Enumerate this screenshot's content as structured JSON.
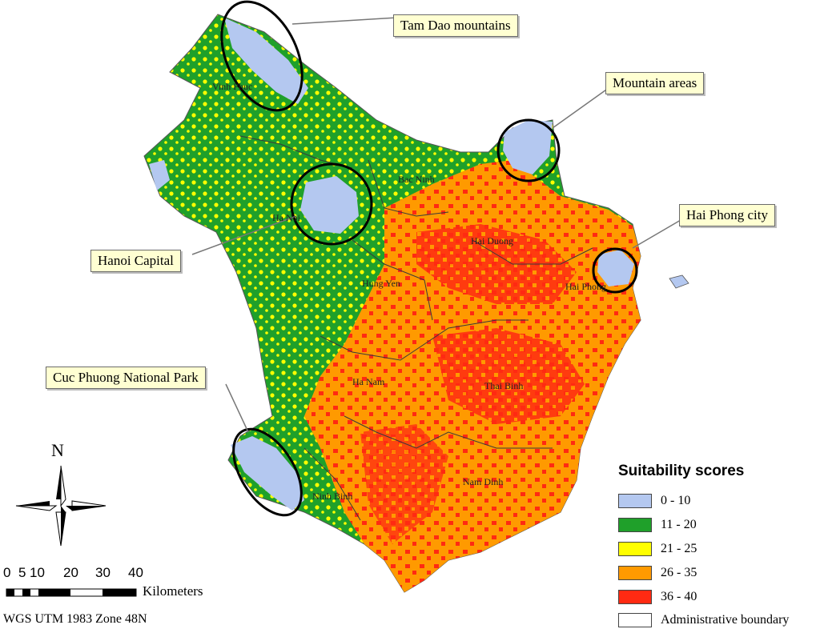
{
  "callouts": {
    "tam_dao": "Tam Dao mountains",
    "mountain_areas": "Mountain areas",
    "hai_phong_city": "Hai Phong city",
    "hanoi_capital": "Hanoi Capital",
    "cuc_phuong": "Cuc Phuong National Park"
  },
  "places": {
    "vinh_phuc": "Vinh Phuc",
    "bac_ninh": "Bac Ninh",
    "ha_noi": "Ha Noi",
    "hai_duong": "Hai Duong",
    "hai_phong": "Hai Phong",
    "hung_yen": "Hung Yen",
    "ha_nam": "Ha Nam",
    "thai_binh": "Thai Binh",
    "nam_dinh": "Nam Dinh",
    "ninh_binh": "Ninh Binh"
  },
  "legend": {
    "title": "Suitability scores",
    "items": [
      {
        "label": "0 - 10",
        "color": "#b4c8f0"
      },
      {
        "label": "11 - 20",
        "color": "#1fa02a"
      },
      {
        "label": "21 - 25",
        "color": "#ffff00"
      },
      {
        "label": "26 - 35",
        "color": "#ff9a00"
      },
      {
        "label": "36 - 40",
        "color": "#ff2a12"
      },
      {
        "label": "Administrative boundary",
        "color": "#ffffff"
      }
    ]
  },
  "north_arrow": {
    "letter": "N"
  },
  "scale_bar": {
    "ticks": [
      "0",
      "5",
      "10",
      "20",
      "30",
      "40"
    ],
    "units": "Kilometers"
  },
  "projection": "WGS UTM 1983 Zone 48N"
}
